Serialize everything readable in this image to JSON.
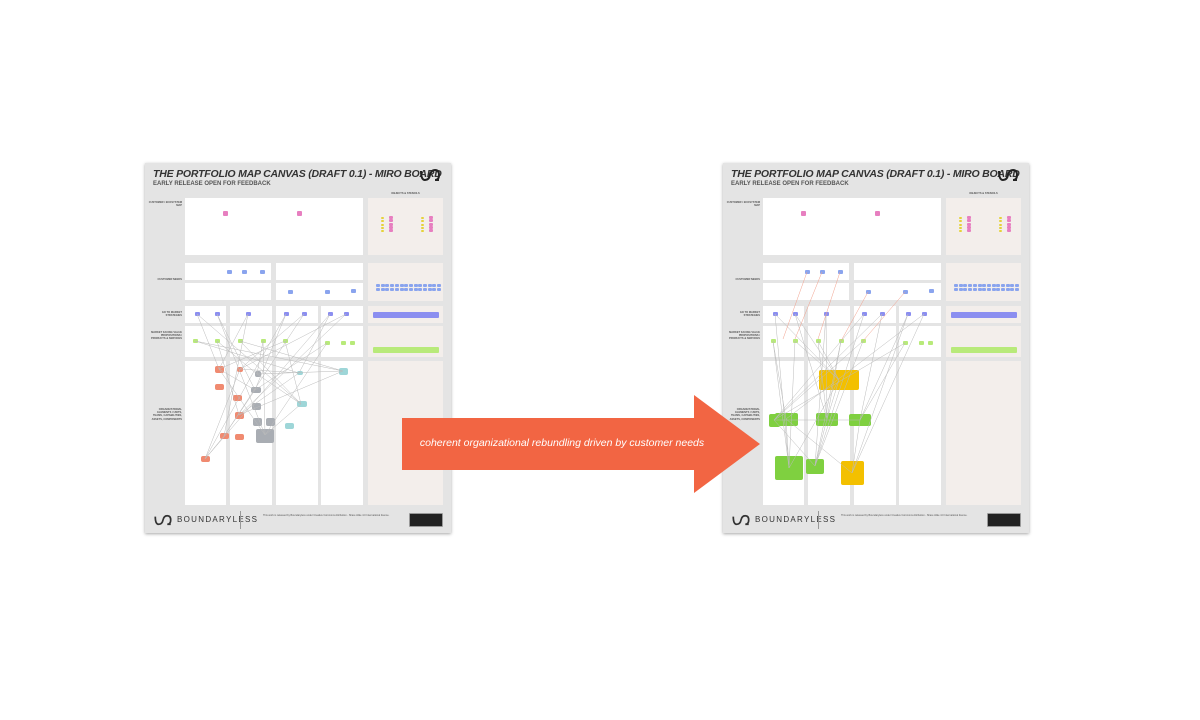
{
  "canvases": [
    {
      "id": "before",
      "title": "THE PORTFOLIO MAP CANVAS (DRAFT 0.1) - MIRO BOARD",
      "subtitle": "EARLY RELEASE OPEN FOR FEEDBACK",
      "brand": "BOUNDARYLESS",
      "footer_text": "This work is released by Boundaryless under Creative Commons Attribution - Share Alike 4.0 International license.",
      "row_labels": [
        "CUSTOMER / ECOSYSTEM MAP",
        "CUSTOMER NEEDS",
        "GO TO MARKET STRATEGIES",
        "MARKET FACING VALUE PROPOSITIONS / PRODUCTS & SERVICES",
        "ORGANIZATIONAL ELEMENTS / UNITS, TEAMS, CAPABILITIES, ASSETS, COMPONENTS"
      ],
      "side_title": "OBJECTS & STENCILS"
    },
    {
      "id": "after",
      "title": "THE PORTFOLIO MAP CANVAS (DRAFT 0.1) - MIRO BOARD",
      "subtitle": "EARLY RELEASE OPEN FOR FEEDBACK",
      "brand": "BOUNDARYLESS",
      "footer_text": "This work is released by Boundaryless under Creative Commons Attribution - Share Alike 4.0 International license.",
      "row_labels": [
        "CUSTOMER / ECOSYSTEM MAP",
        "CUSTOMER NEEDS",
        "GO TO MARKET STRATEGIES",
        "MARKET FACING VALUE PROPOSITIONS / PRODUCTS & SERVICES",
        "ORGANIZATIONAL ELEMENTS / UNITS, TEAMS, CAPABILITIES, ASSETS, COMPONENTS"
      ],
      "side_title": "OBJECTS & STENCILS"
    }
  ],
  "arrow": {
    "label": "coherent organizational rebundling driven by customer needs",
    "color": "#F26543"
  },
  "colors": {
    "pink": "#e77fc0",
    "blue": "#8aa4ee",
    "violet": "#8b8ef0",
    "green": "#b8ea7a",
    "salmon": "#f08a70",
    "grey": "#a9adb3",
    "teal": "#9ed6d8",
    "yellow": "#f3c000",
    "lime": "#7fd040"
  }
}
